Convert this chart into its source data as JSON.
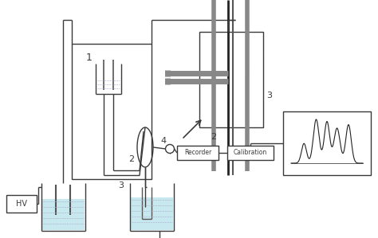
{
  "bg_color": "#ffffff",
  "line_color": "#3a3a3a",
  "light_blue": "#c8e8f0",
  "gray": "#888888",
  "dark_gray": "#555555",
  "label_1": "1",
  "label_2": "2",
  "label_3": "3",
  "label_4": "4",
  "label_HV": "HV",
  "label_recorder": "Recorder",
  "label_calibration": "Calibration",
  "figsize": [
    4.74,
    2.99
  ],
  "dpi": 100
}
